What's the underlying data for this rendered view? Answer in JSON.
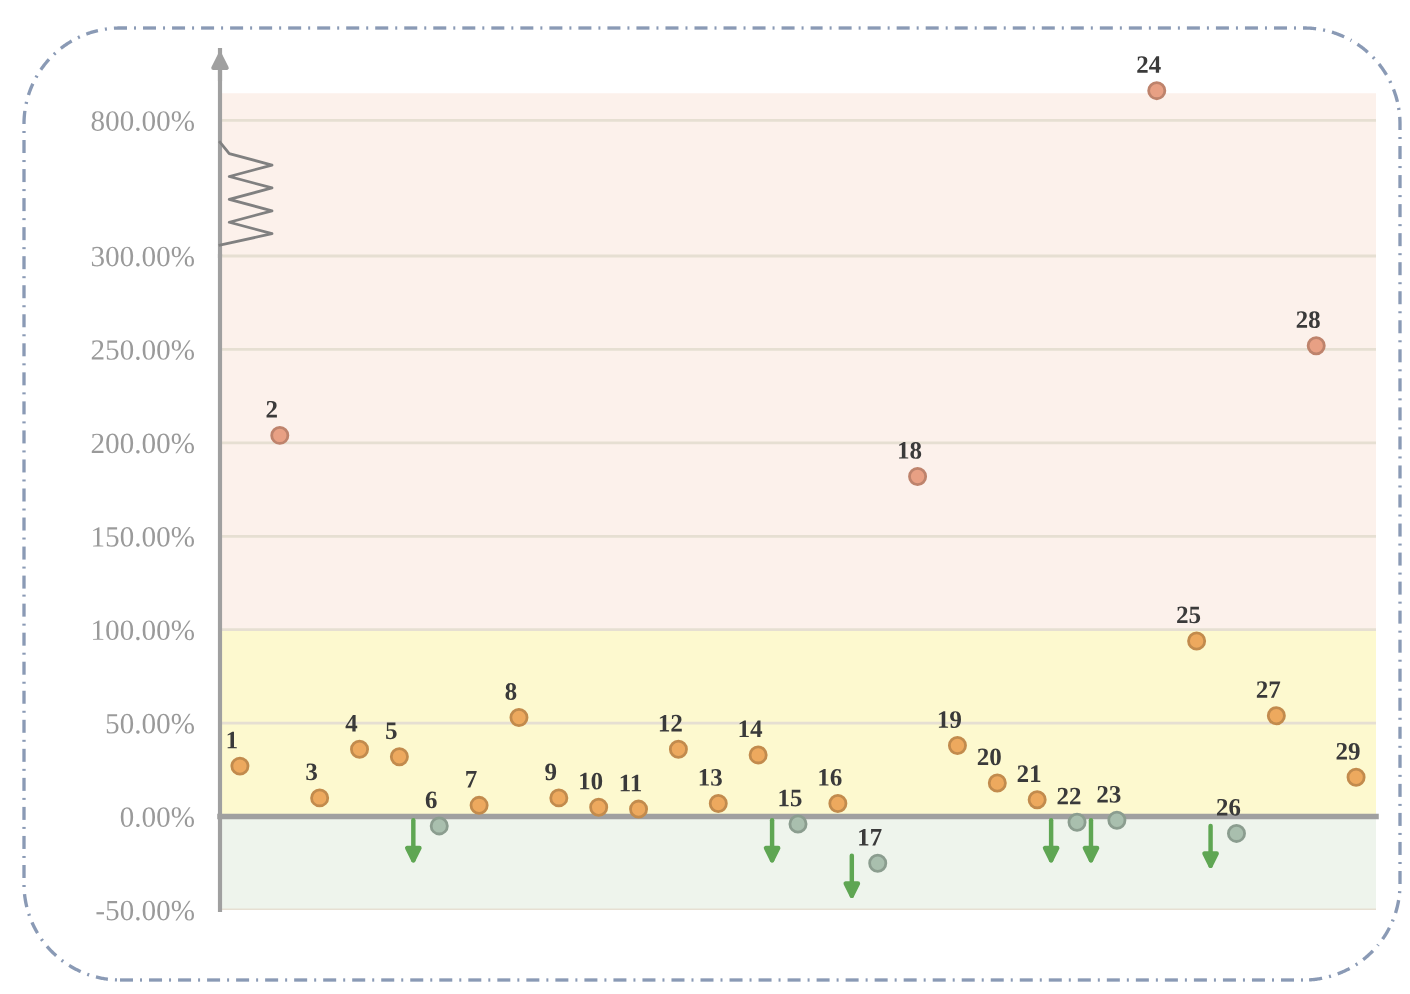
{
  "chart_data": [
    {
      "type": "scatter",
      "categories": [
        null,
        null,
        null,
        null,
        null,
        null,
        null,
        null,
        null,
        null,
        null,
        null,
        null,
        null,
        null,
        null,
        null,
        null,
        null,
        null,
        null,
        null,
        null,
        null,
        null,
        null,
        null,
        null,
        null
      ],
      "series": [
        {
          "name": "24",
          "color": "#e8a084",
          "values": [
            null,
            null,
            null,
            null,
            null,
            null,
            null,
            null,
            null,
            null,
            null,
            null,
            null,
            null,
            null,
            null,
            null,
            null,
            null,
            null,
            null,
            null,
            null,
            910,
            null,
            null,
            null,
            null,
            null
          ]
        }
      ],
      "marker": "circle",
      "ylim": [
        300,
        1060
      ],
      "yticks": [
        {
          "value": 300,
          "label": "300.00%"
        },
        {
          "value": 800,
          "label": "800.00%"
        }
      ],
      "grid": "y",
      "tick_labels": "y",
      "bands": [
        {
          "axis": "y",
          "from": 300,
          "to": 900,
          "color": "#fcf1eb"
        }
      ]
    },
    {
      "type": "scatter",
      "categories": [
        null,
        null,
        null,
        null,
        null,
        null,
        null,
        null,
        null,
        null,
        null,
        null,
        null,
        null,
        null,
        null,
        null,
        null,
        null,
        null,
        null,
        null,
        null,
        null,
        null,
        null,
        null,
        null,
        null
      ],
      "series": [
        {
          "name": "1",
          "color": "#eda95e",
          "values": [
            27,
            null,
            null,
            null,
            null,
            null,
            null,
            null,
            null,
            null,
            null,
            null,
            null,
            null,
            null,
            null,
            null,
            null,
            null,
            null,
            null,
            null,
            null,
            null,
            null,
            null,
            null,
            null,
            null
          ]
        },
        {
          "name": "2",
          "color": "#e8a084",
          "values": [
            null,
            204,
            null,
            null,
            null,
            null,
            null,
            null,
            null,
            null,
            null,
            null,
            null,
            null,
            null,
            null,
            null,
            null,
            null,
            null,
            null,
            null,
            null,
            null,
            null,
            null,
            null,
            null,
            null
          ]
        },
        {
          "name": "3",
          "color": "#eda95e",
          "values": [
            null,
            null,
            10,
            null,
            null,
            null,
            null,
            null,
            null,
            null,
            null,
            null,
            null,
            null,
            null,
            null,
            null,
            null,
            null,
            null,
            null,
            null,
            null,
            null,
            null,
            null,
            null,
            null,
            null
          ]
        },
        {
          "name": "4",
          "color": "#eda95e",
          "values": [
            null,
            null,
            null,
            36,
            null,
            null,
            null,
            null,
            null,
            null,
            null,
            null,
            null,
            null,
            null,
            null,
            null,
            null,
            null,
            null,
            null,
            null,
            null,
            null,
            null,
            null,
            null,
            null,
            null
          ]
        },
        {
          "name": "5",
          "color": "#eda95e",
          "values": [
            null,
            null,
            null,
            null,
            32,
            null,
            null,
            null,
            null,
            null,
            null,
            null,
            null,
            null,
            null,
            null,
            null,
            null,
            null,
            null,
            null,
            null,
            null,
            null,
            null,
            null,
            null,
            null,
            null
          ]
        },
        {
          "name": "6",
          "color": "#a9bfae",
          "values": [
            null,
            null,
            null,
            null,
            null,
            -5,
            null,
            null,
            null,
            null,
            null,
            null,
            null,
            null,
            null,
            null,
            null,
            null,
            null,
            null,
            null,
            null,
            null,
            null,
            null,
            null,
            null,
            null,
            null
          ]
        },
        {
          "name": "7",
          "color": "#eda95e",
          "values": [
            null,
            null,
            null,
            null,
            null,
            null,
            6,
            null,
            null,
            null,
            null,
            null,
            null,
            null,
            null,
            null,
            null,
            null,
            null,
            null,
            null,
            null,
            null,
            null,
            null,
            null,
            null,
            null,
            null
          ]
        },
        {
          "name": "8",
          "color": "#eda95e",
          "values": [
            null,
            null,
            null,
            null,
            null,
            null,
            null,
            53,
            null,
            null,
            null,
            null,
            null,
            null,
            null,
            null,
            null,
            null,
            null,
            null,
            null,
            null,
            null,
            null,
            null,
            null,
            null,
            null,
            null
          ]
        },
        {
          "name": "9",
          "color": "#eda95e",
          "values": [
            null,
            null,
            null,
            null,
            null,
            null,
            null,
            null,
            10,
            null,
            null,
            null,
            null,
            null,
            null,
            null,
            null,
            null,
            null,
            null,
            null,
            null,
            null,
            null,
            null,
            null,
            null,
            null,
            null
          ]
        },
        {
          "name": "10",
          "color": "#eda95e",
          "values": [
            null,
            null,
            null,
            null,
            null,
            null,
            null,
            null,
            null,
            5,
            null,
            null,
            null,
            null,
            null,
            null,
            null,
            null,
            null,
            null,
            null,
            null,
            null,
            null,
            null,
            null,
            null,
            null,
            null
          ]
        },
        {
          "name": "11",
          "color": "#eda95e",
          "values": [
            null,
            null,
            null,
            null,
            null,
            null,
            null,
            null,
            null,
            null,
            4,
            null,
            null,
            null,
            null,
            null,
            null,
            null,
            null,
            null,
            null,
            null,
            null,
            null,
            null,
            null,
            null,
            null,
            null
          ]
        },
        {
          "name": "12",
          "color": "#eda95e",
          "values": [
            null,
            null,
            null,
            null,
            null,
            null,
            null,
            null,
            null,
            null,
            null,
            36,
            null,
            null,
            null,
            null,
            null,
            null,
            null,
            null,
            null,
            null,
            null,
            null,
            null,
            null,
            null,
            null,
            null
          ]
        },
        {
          "name": "13",
          "color": "#eda95e",
          "values": [
            null,
            null,
            null,
            null,
            null,
            null,
            null,
            null,
            null,
            null,
            null,
            null,
            7,
            null,
            null,
            null,
            null,
            null,
            null,
            null,
            null,
            null,
            null,
            null,
            null,
            null,
            null,
            null,
            null
          ]
        },
        {
          "name": "14",
          "color": "#eda95e",
          "values": [
            null,
            null,
            null,
            null,
            null,
            null,
            null,
            null,
            null,
            null,
            null,
            null,
            null,
            33,
            null,
            null,
            null,
            null,
            null,
            null,
            null,
            null,
            null,
            null,
            null,
            null,
            null,
            null,
            null
          ]
        },
        {
          "name": "15",
          "color": "#a9bfae",
          "values": [
            null,
            null,
            null,
            null,
            null,
            null,
            null,
            null,
            null,
            null,
            null,
            null,
            null,
            null,
            -4,
            null,
            null,
            null,
            null,
            null,
            null,
            null,
            null,
            null,
            null,
            null,
            null,
            null,
            null
          ]
        },
        {
          "name": "16",
          "color": "#eda95e",
          "values": [
            null,
            null,
            null,
            null,
            null,
            null,
            null,
            null,
            null,
            null,
            null,
            null,
            null,
            null,
            null,
            7,
            null,
            null,
            null,
            null,
            null,
            null,
            null,
            null,
            null,
            null,
            null,
            null,
            null
          ]
        },
        {
          "name": "17",
          "color": "#a9bfae",
          "values": [
            null,
            null,
            null,
            null,
            null,
            null,
            null,
            null,
            null,
            null,
            null,
            null,
            null,
            null,
            null,
            null,
            -25,
            null,
            null,
            null,
            null,
            null,
            null,
            null,
            null,
            null,
            null,
            null,
            null
          ]
        },
        {
          "name": "18",
          "color": "#e8a084",
          "values": [
            null,
            null,
            null,
            null,
            null,
            null,
            null,
            null,
            null,
            null,
            null,
            null,
            null,
            null,
            null,
            null,
            null,
            182,
            null,
            null,
            null,
            null,
            null,
            null,
            null,
            null,
            null,
            null,
            null
          ]
        },
        {
          "name": "19",
          "color": "#eda95e",
          "values": [
            null,
            null,
            null,
            null,
            null,
            null,
            null,
            null,
            null,
            null,
            null,
            null,
            null,
            null,
            null,
            null,
            null,
            null,
            38,
            null,
            null,
            null,
            null,
            null,
            null,
            null,
            null,
            null,
            null
          ]
        },
        {
          "name": "20",
          "color": "#eda95e",
          "values": [
            null,
            null,
            null,
            null,
            null,
            null,
            null,
            null,
            null,
            null,
            null,
            null,
            null,
            null,
            null,
            null,
            null,
            null,
            null,
            18,
            null,
            null,
            null,
            null,
            null,
            null,
            null,
            null,
            null
          ]
        },
        {
          "name": "21",
          "color": "#eda95e",
          "values": [
            null,
            null,
            null,
            null,
            null,
            null,
            null,
            null,
            null,
            null,
            null,
            null,
            null,
            null,
            null,
            null,
            null,
            null,
            null,
            null,
            9,
            null,
            null,
            null,
            null,
            null,
            null,
            null,
            null
          ]
        },
        {
          "name": "22",
          "color": "#a9bfae",
          "values": [
            null,
            null,
            null,
            null,
            null,
            null,
            null,
            null,
            null,
            null,
            null,
            null,
            null,
            null,
            null,
            null,
            null,
            null,
            null,
            null,
            null,
            -3,
            null,
            null,
            null,
            null,
            null,
            null,
            null
          ]
        },
        {
          "name": "23",
          "color": "#a9bfae",
          "values": [
            null,
            null,
            null,
            null,
            null,
            null,
            null,
            null,
            null,
            null,
            null,
            null,
            null,
            null,
            null,
            null,
            null,
            null,
            null,
            null,
            null,
            null,
            -2,
            null,
            null,
            null,
            null,
            null,
            null
          ]
        },
        {
          "name": "25",
          "color": "#eda95e",
          "values": [
            null,
            null,
            null,
            null,
            null,
            null,
            null,
            null,
            null,
            null,
            null,
            null,
            null,
            null,
            null,
            null,
            null,
            null,
            null,
            null,
            null,
            null,
            null,
            null,
            94,
            null,
            null,
            null,
            null
          ]
        },
        {
          "name": "26",
          "color": "#a9bfae",
          "values": [
            null,
            null,
            null,
            null,
            null,
            null,
            null,
            null,
            null,
            null,
            null,
            null,
            null,
            null,
            null,
            null,
            null,
            null,
            null,
            null,
            null,
            null,
            null,
            null,
            null,
            -9,
            null,
            null,
            null
          ]
        },
        {
          "name": "27",
          "color": "#eda95e",
          "values": [
            null,
            null,
            null,
            null,
            null,
            null,
            null,
            null,
            null,
            null,
            null,
            null,
            null,
            null,
            null,
            null,
            null,
            null,
            null,
            null,
            null,
            null,
            null,
            null,
            null,
            null,
            54,
            null,
            null
          ]
        },
        {
          "name": "28",
          "color": "#e8a084",
          "values": [
            null,
            null,
            null,
            null,
            null,
            null,
            null,
            null,
            null,
            null,
            null,
            null,
            null,
            null,
            null,
            null,
            null,
            null,
            null,
            null,
            null,
            null,
            null,
            null,
            null,
            null,
            null,
            252,
            null
          ]
        },
        {
          "name": "29",
          "color": "#eda95e",
          "values": [
            null,
            null,
            null,
            null,
            null,
            null,
            null,
            null,
            null,
            null,
            null,
            null,
            null,
            null,
            null,
            null,
            null,
            null,
            null,
            null,
            null,
            null,
            null,
            null,
            null,
            null,
            null,
            null,
            21
          ]
        }
      ],
      "marker": "circle",
      "ylim": [
        -50,
        300
      ],
      "yticks": [
        {
          "value": -50,
          "label": "-50.00%"
        },
        {
          "value": 0,
          "label": "0.00%"
        },
        {
          "value": 50,
          "label": "50.00%"
        },
        {
          "value": 100,
          "label": "100.00%"
        },
        {
          "value": 150,
          "label": "150.00%"
        },
        {
          "value": 200,
          "label": "200.00%"
        },
        {
          "value": 250,
          "label": "250.00%"
        },
        {
          "value": 300,
          "label": null
        }
      ],
      "grid": "y",
      "tick_labels": "y",
      "bands": [
        {
          "axis": "y",
          "from": -50,
          "to": 0,
          "color": "#eef4ec"
        },
        {
          "axis": "y",
          "from": 0,
          "to": 100,
          "color": "#fdf9cf"
        },
        {
          "axis": "y",
          "from": 100,
          "to": 300,
          "color": "#fcf1eb"
        }
      ]
    }
  ]
}
